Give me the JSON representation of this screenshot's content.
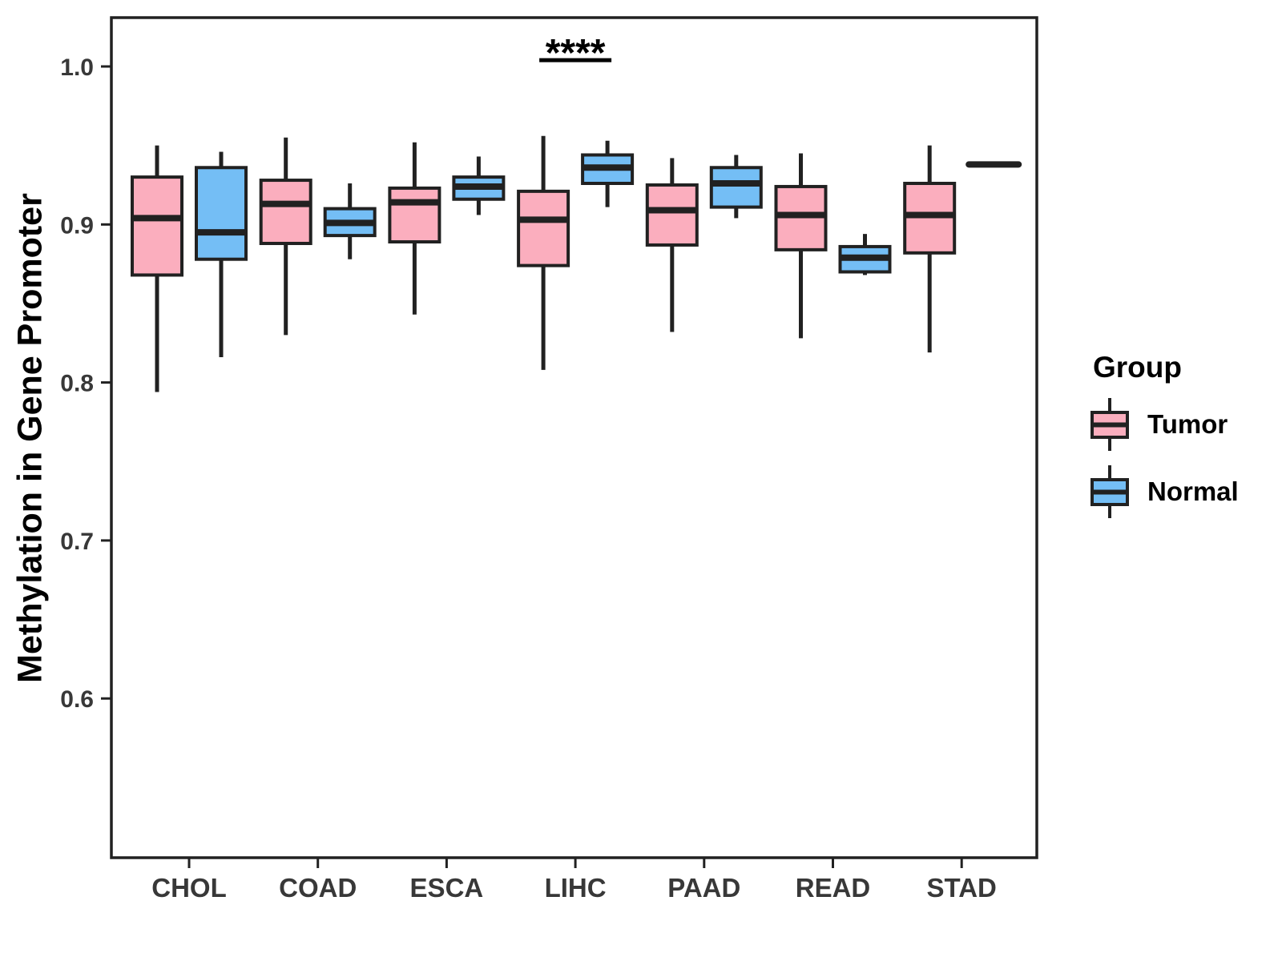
{
  "chart_data": {
    "type": "boxplot",
    "title": "",
    "xlabel": "",
    "ylabel": "Methylation in Gene Promoter",
    "categories": [
      "CHOL",
      "COAD",
      "ESCA",
      "LIHC",
      "PAAD",
      "READ",
      "STAD"
    ],
    "y_ticks": [
      "1.0",
      "0.9",
      "0.8",
      "0.7",
      "0.6"
    ],
    "y_tick_values": [
      1.0,
      0.9,
      0.8,
      0.7,
      0.6
    ],
    "ylim": [
      0.5,
      1.03
    ],
    "grid": false,
    "legend_position": "right",
    "legend": {
      "title": "Group",
      "items": [
        "Tumor",
        "Normal"
      ]
    },
    "colors": {
      "tumor": "#FBAEBE",
      "normal": "#74BEF5",
      "line": "#212121",
      "tick_text": "#383838"
    },
    "annotation": {
      "text": "****",
      "category": "LIHC",
      "line_y": 1.004
    },
    "series": [
      {
        "name": "Tumor",
        "color": "#FBAEBE",
        "data": [
          {
            "category": "CHOL",
            "min": 0.794,
            "q1": 0.868,
            "median": 0.904,
            "q3": 0.93,
            "max": 0.95
          },
          {
            "category": "COAD",
            "min": 0.83,
            "q1": 0.888,
            "median": 0.913,
            "q3": 0.928,
            "max": 0.955
          },
          {
            "category": "ESCA",
            "min": 0.843,
            "q1": 0.889,
            "median": 0.914,
            "q3": 0.923,
            "max": 0.952
          },
          {
            "category": "LIHC",
            "min": 0.808,
            "q1": 0.874,
            "median": 0.903,
            "q3": 0.921,
            "max": 0.956
          },
          {
            "category": "PAAD",
            "min": 0.832,
            "q1": 0.887,
            "median": 0.909,
            "q3": 0.925,
            "max": 0.942
          },
          {
            "category": "READ",
            "min": 0.828,
            "q1": 0.884,
            "median": 0.906,
            "q3": 0.924,
            "max": 0.945
          },
          {
            "category": "STAD",
            "min": 0.819,
            "q1": 0.882,
            "median": 0.906,
            "q3": 0.926,
            "max": 0.95
          }
        ]
      },
      {
        "name": "Normal",
        "color": "#74BEF5",
        "data": [
          {
            "category": "CHOL",
            "min": 0.816,
            "q1": 0.878,
            "median": 0.895,
            "q3": 0.936,
            "max": 0.946
          },
          {
            "category": "COAD",
            "min": 0.878,
            "q1": 0.893,
            "median": 0.901,
            "q3": 0.91,
            "max": 0.926
          },
          {
            "category": "ESCA",
            "min": 0.906,
            "q1": 0.916,
            "median": 0.924,
            "q3": 0.93,
            "max": 0.943
          },
          {
            "category": "LIHC",
            "min": 0.911,
            "q1": 0.926,
            "median": 0.936,
            "q3": 0.944,
            "max": 0.953
          },
          {
            "category": "PAAD",
            "min": 0.904,
            "q1": 0.911,
            "median": 0.926,
            "q3": 0.936,
            "max": 0.944
          },
          {
            "category": "READ",
            "min": 0.868,
            "q1": 0.87,
            "median": 0.879,
            "q3": 0.886,
            "max": 0.894
          },
          {
            "category": "STAD",
            "min": 0.938,
            "q1": 0.938,
            "median": 0.938,
            "q3": 0.938,
            "max": 0.938
          }
        ]
      }
    ]
  }
}
